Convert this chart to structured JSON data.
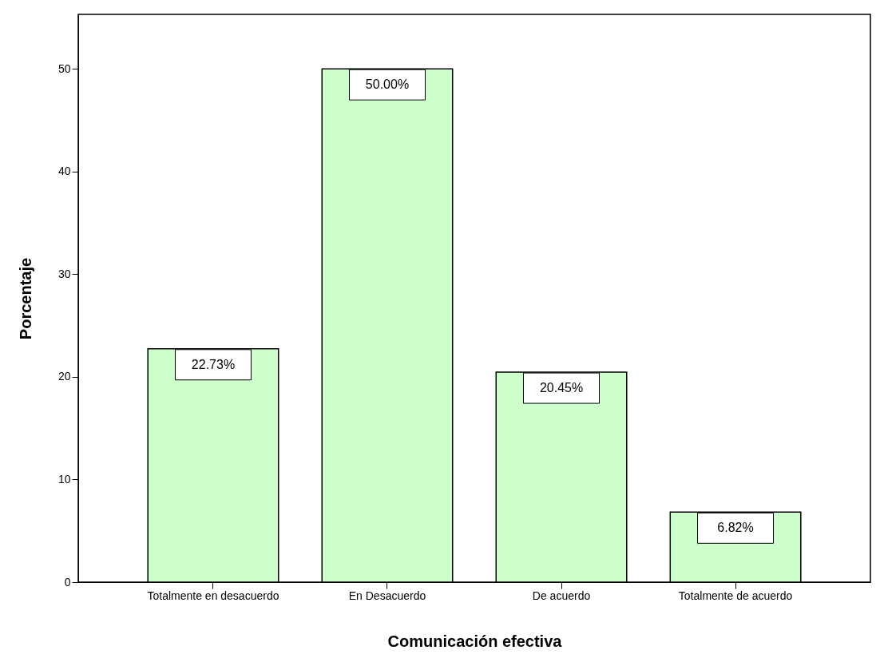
{
  "chart_data": {
    "type": "bar",
    "xlabel": "Comunicación efectiva",
    "ylabel": "Porcentaje",
    "categories": [
      "Totalmente en desacuerdo",
      "En Desacuerdo",
      "De acuerdo",
      "Totalmente de acuerdo"
    ],
    "values": [
      22.73,
      50.0,
      20.45,
      6.82
    ],
    "value_labels": [
      "22.73%",
      "50.00%",
      "20.45%",
      "6.82%"
    ],
    "color": "#ccffcc",
    "ylim": [
      0,
      55.3
    ],
    "yticks": [
      0,
      10,
      20,
      30,
      40,
      50
    ],
    "grid": false
  }
}
